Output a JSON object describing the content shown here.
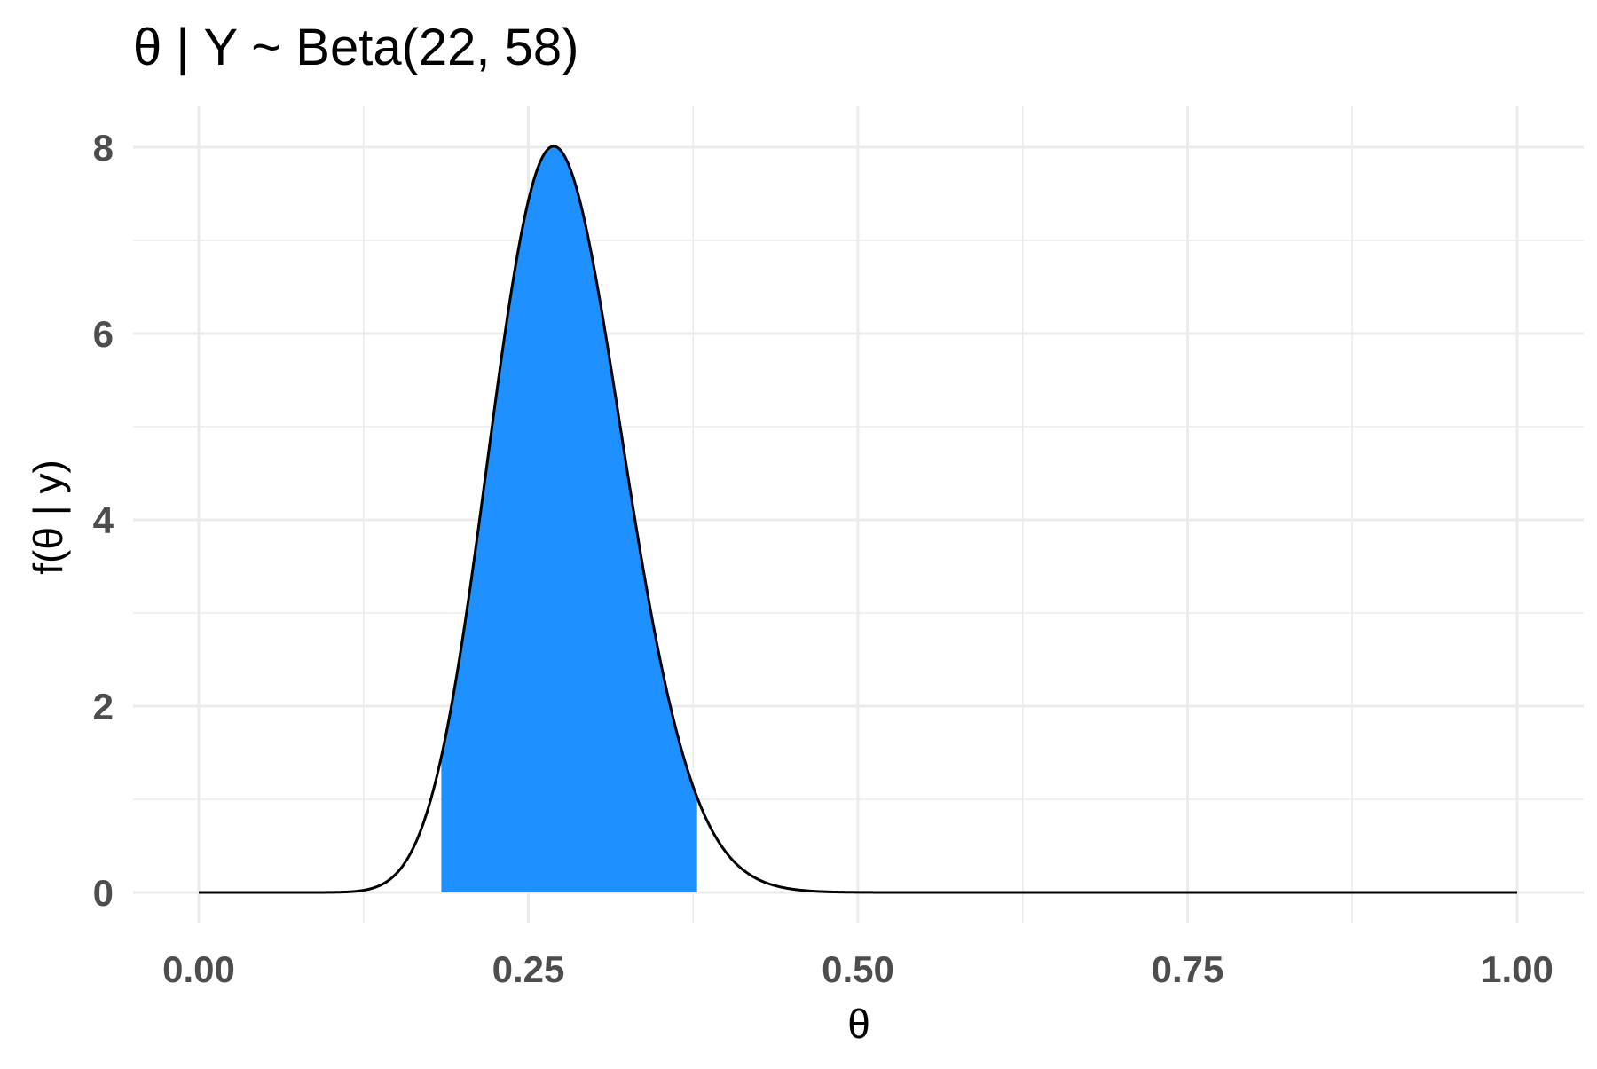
{
  "chart_data": {
    "type": "area",
    "title": "θ | Y ~ Beta(22, 58)",
    "xlabel": "θ",
    "ylabel": "f(θ | y)",
    "distribution": {
      "family": "Beta",
      "alpha": 22,
      "beta": 58
    },
    "xlim": [
      0,
      1
    ],
    "ylim": [
      0,
      8
    ],
    "x_ticks": [
      0,
      0.25,
      0.5,
      0.75,
      1
    ],
    "x_tick_labels": [
      "0.00",
      "0.25",
      "0.50",
      "0.75",
      "1.00"
    ],
    "y_ticks": [
      0,
      2,
      4,
      6,
      8
    ],
    "y_tick_labels": [
      "0",
      "2",
      "4",
      "6",
      "8"
    ],
    "shaded_interval": [
      0.184,
      0.378
    ],
    "grid": true,
    "colors": {
      "fill": "#1e90ff",
      "line": "#000000",
      "grid": "#ebebeb"
    },
    "series": [
      {
        "x": [
          0,
          0.1,
          0.15,
          0.18,
          0.2,
          0.22,
          0.25,
          0.27,
          0.3,
          0.33,
          0.36,
          0.4,
          0.45,
          0.5,
          0.6,
          0.8,
          1
        ],
        "y": [
          0,
          0.02,
          0.5,
          1.6,
          2.9,
          4.7,
          7.3,
          7.98,
          6.9,
          4.4,
          2.1,
          0.5,
          0.05,
          0.002,
          0,
          0,
          0
        ]
      }
    ]
  }
}
